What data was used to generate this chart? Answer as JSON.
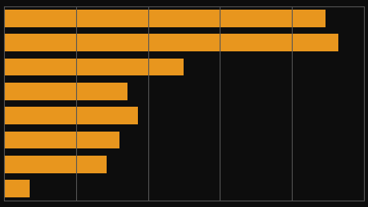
{
  "values": [
    12.5,
    13.0,
    7.0,
    4.8,
    5.2,
    4.5,
    4.0,
    1.0
  ],
  "bar_color": "#E8961E",
  "background_color": "#0d0d0d",
  "plot_bg_color": "#0d0d0d",
  "grid_color": "#555555",
  "xlim": [
    0,
    14.0
  ],
  "figsize": [
    4.59,
    2.58
  ],
  "dpi": 100,
  "bar_height": 0.72,
  "n_gridlines": 5
}
